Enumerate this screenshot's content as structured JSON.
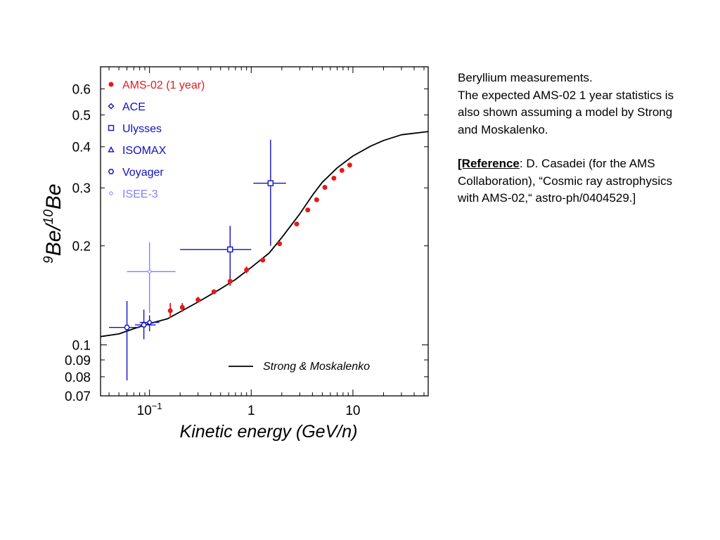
{
  "description": {
    "line1": "Beryllium measurements.",
    "line2": "The expected AMS-02 1 year statistics is also shown assuming a model by Strong and Moskalenko.",
    "ref_label": "[Reference",
    "ref_text": ": D. Casadei (for the AMS Collaboration), “Cosmic ray astrophysics with AMS-02,“ astro-ph/0404529.]"
  },
  "colors": {
    "ams": "#e41a1c",
    "data": "#1010c0",
    "model": "#000000"
  },
  "chart_data": {
    "type": "scatter",
    "title": "",
    "xlabel": "Kinetic energy (GeV/n)",
    "ylabel": "9Be/10Be",
    "ylabel_parts": {
      "sup1": "9",
      "base1": "Be/",
      "sup2": "10",
      "base2": "Be"
    },
    "xscale": "log",
    "yscale": "log",
    "xlim": [
      0.033,
      55
    ],
    "ylim": [
      0.07,
      0.7
    ],
    "grid": false,
    "legend_position": "top-left",
    "x_tick_labels": [
      {
        "value": 0.1,
        "base": "10",
        "exp": "−1"
      },
      {
        "value": 1,
        "base": "1",
        "exp": ""
      },
      {
        "value": 10,
        "base": "10",
        "exp": ""
      }
    ],
    "y_tick_labels": [
      {
        "value": 0.6,
        "label": "0.6"
      },
      {
        "value": 0.5,
        "label": "0.5"
      },
      {
        "value": 0.4,
        "label": "0.4"
      },
      {
        "value": 0.3,
        "label": "0.3"
      },
      {
        "value": 0.2,
        "label": "0.2"
      },
      {
        "value": 0.1,
        "label": "0.1"
      },
      {
        "value": 0.09,
        "label": "0.09"
      },
      {
        "value": 0.08,
        "label": "0.08"
      },
      {
        "value": 0.07,
        "label": "0.07"
      }
    ],
    "model_curve": {
      "name": "Strong & Moskalenko",
      "points": [
        [
          0.033,
          0.106
        ],
        [
          0.05,
          0.108
        ],
        [
          0.07,
          0.112
        ],
        [
          0.1,
          0.116
        ],
        [
          0.15,
          0.12
        ],
        [
          0.2,
          0.126
        ],
        [
          0.3,
          0.135
        ],
        [
          0.5,
          0.148
        ],
        [
          0.7,
          0.158
        ],
        [
          1.0,
          0.172
        ],
        [
          1.5,
          0.19
        ],
        [
          2.0,
          0.212
        ],
        [
          3.0,
          0.25
        ],
        [
          4.0,
          0.285
        ],
        [
          5.0,
          0.312
        ],
        [
          7.0,
          0.345
        ],
        [
          10.0,
          0.375
        ],
        [
          15.0,
          0.402
        ],
        [
          20.0,
          0.418
        ],
        [
          30.0,
          0.435
        ],
        [
          55.0,
          0.445
        ]
      ]
    },
    "series": [
      {
        "name": "AMS-02 (1 year)",
        "marker": "filled-circle",
        "color": "#e41a1c",
        "points": [
          {
            "x": 0.16,
            "y": 0.127,
            "ylo": 0.121,
            "yhi": 0.134
          },
          {
            "x": 0.21,
            "y": 0.13,
            "ylo": 0.126,
            "yhi": 0.134
          },
          {
            "x": 0.3,
            "y": 0.137,
            "ylo": 0.134,
            "yhi": 0.14
          },
          {
            "x": 0.43,
            "y": 0.145,
            "ylo": 0.143,
            "yhi": 0.147
          },
          {
            "x": 0.62,
            "y": 0.156,
            "ylo": 0.151,
            "yhi": 0.161
          },
          {
            "x": 0.9,
            "y": 0.169,
            "ylo": 0.165,
            "yhi": 0.173
          },
          {
            "x": 1.3,
            "y": 0.181,
            "ylo": 0.178,
            "yhi": 0.184
          },
          {
            "x": 1.9,
            "y": 0.203,
            "ylo": 0.2,
            "yhi": 0.206
          },
          {
            "x": 2.8,
            "y": 0.233,
            "ylo": 0.23,
            "yhi": 0.236
          },
          {
            "x": 3.6,
            "y": 0.257,
            "ylo": 0.254,
            "yhi": 0.26
          },
          {
            "x": 4.4,
            "y": 0.276,
            "ylo": 0.273,
            "yhi": 0.279
          },
          {
            "x": 5.3,
            "y": 0.301,
            "ylo": 0.297,
            "yhi": 0.305
          },
          {
            "x": 6.5,
            "y": 0.321,
            "ylo": 0.317,
            "yhi": 0.325
          },
          {
            "x": 7.8,
            "y": 0.339,
            "ylo": 0.335,
            "yhi": 0.343
          },
          {
            "x": 9.3,
            "y": 0.352,
            "ylo": 0.348,
            "yhi": 0.356
          }
        ]
      },
      {
        "name": "ACE",
        "marker": "open-diamond",
        "color": "#1010c0",
        "points": [
          {
            "x": 0.1,
            "y": 0.117,
            "xlo": 0.08,
            "xhi": 0.125,
            "ylo": 0.11,
            "yhi": 0.123
          }
        ]
      },
      {
        "name": "Ulysses",
        "marker": "open-square",
        "color": "#1010c0",
        "points": [
          {
            "x": 0.62,
            "y": 0.195,
            "xlo": 0.2,
            "xhi": 1.0,
            "ylo": 0.16,
            "yhi": 0.23
          },
          {
            "x": 1.55,
            "y": 0.31,
            "xlo": 1.05,
            "xhi": 2.2,
            "ylo": 0.2,
            "yhi": 0.42
          }
        ]
      },
      {
        "name": "ISOMAX",
        "marker": "open-triangle",
        "color": "#1010c0",
        "points": []
      },
      {
        "name": "Voyager",
        "marker": "open-hexagon",
        "color": "#1010c0",
        "points": [
          {
            "x": 0.06,
            "y": 0.113,
            "xlo": 0.04,
            "xhi": 0.08,
            "ylo": 0.078,
            "yhi": 0.136
          },
          {
            "x": 0.088,
            "y": 0.115,
            "xlo": 0.072,
            "xhi": 0.115,
            "ylo": 0.104,
            "yhi": 0.128
          }
        ]
      },
      {
        "name": "ISEE-3",
        "marker": "small-circle",
        "color": "#8080ff",
        "points": [
          {
            "x": 0.1,
            "y": 0.167,
            "xlo": 0.06,
            "xhi": 0.18,
            "ylo": 0.125,
            "yhi": 0.205
          }
        ]
      }
    ]
  }
}
